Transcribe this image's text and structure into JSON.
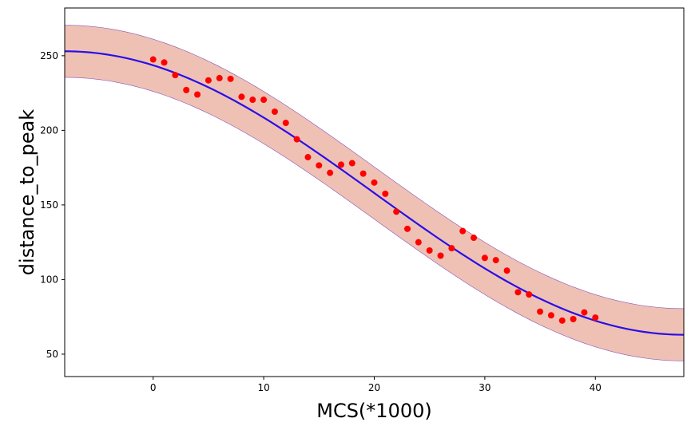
{
  "chart_data": {
    "type": "scatter",
    "title": "",
    "xlabel": "MCS(*1000)",
    "ylabel": "distance_to_peak",
    "xlim": [
      -8,
      48
    ],
    "ylim": [
      35,
      282
    ],
    "xticks": [
      0,
      10,
      20,
      30,
      40
    ],
    "yticks": [
      50,
      100,
      150,
      200,
      250
    ],
    "grid": false,
    "legend": "none",
    "colors": {
      "points": "#ff0000",
      "fit_line": "#2a0fe8",
      "band_fill": "#efc1b4",
      "band_edge": "#8a55b8"
    },
    "points": {
      "x": [
        0,
        1,
        2,
        3,
        4,
        5,
        6,
        7,
        8,
        9,
        10,
        11,
        12,
        13,
        14,
        15,
        16,
        17,
        18,
        19,
        20,
        21,
        22,
        23,
        24,
        25,
        26,
        27,
        28,
        29,
        30,
        31,
        32,
        33,
        34,
        35,
        36,
        37,
        38,
        39,
        40
      ],
      "y": [
        247.5,
        245.5,
        237,
        227,
        224,
        233.5,
        235,
        234.5,
        222.5,
        220.5,
        220.5,
        212.5,
        205,
        194,
        182,
        176.5,
        171.5,
        177,
        178,
        171,
        165,
        157.5,
        145.5,
        134,
        125,
        119.5,
        116,
        121,
        132.5,
        128,
        114.5,
        113,
        106,
        91.5,
        90,
        78.5,
        76,
        72.5,
        73.5,
        78,
        74.5
      ]
    },
    "fit": {
      "x_start": -8,
      "x_end": 48,
      "y_start": 253,
      "y_end": 63,
      "band_half_width": 17.5
    }
  }
}
